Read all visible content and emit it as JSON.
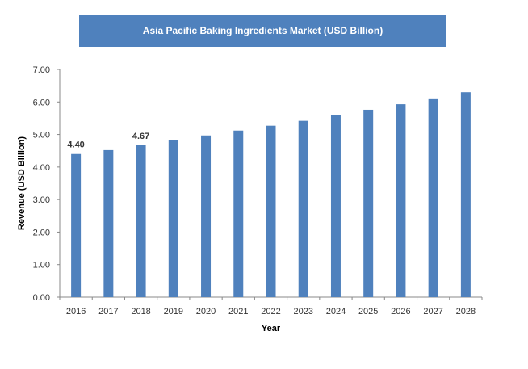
{
  "chart_data": {
    "type": "bar",
    "title": "Asia Pacific Baking Ingredients Market (USD Billion)",
    "xlabel": "Year",
    "ylabel": "Revenue (USD Billion)",
    "ylim": [
      0,
      7
    ],
    "y_ticks": [
      "0.00",
      "1.00",
      "2.00",
      "3.00",
      "4.00",
      "5.00",
      "6.00",
      "7.00"
    ],
    "categories": [
      "2016",
      "2017",
      "2018",
      "2019",
      "2020",
      "2021",
      "2022",
      "2023",
      "2024",
      "2025",
      "2026",
      "2027",
      "2028"
    ],
    "values": [
      4.4,
      4.52,
      4.67,
      4.82,
      4.97,
      5.12,
      5.27,
      5.42,
      5.59,
      5.76,
      5.93,
      6.11,
      6.3
    ],
    "data_labels": [
      {
        "category": "2016",
        "text": "4.40"
      },
      {
        "category": "2018",
        "text": "4.67"
      }
    ],
    "grid": false,
    "bar_color": "#4f81bd"
  }
}
